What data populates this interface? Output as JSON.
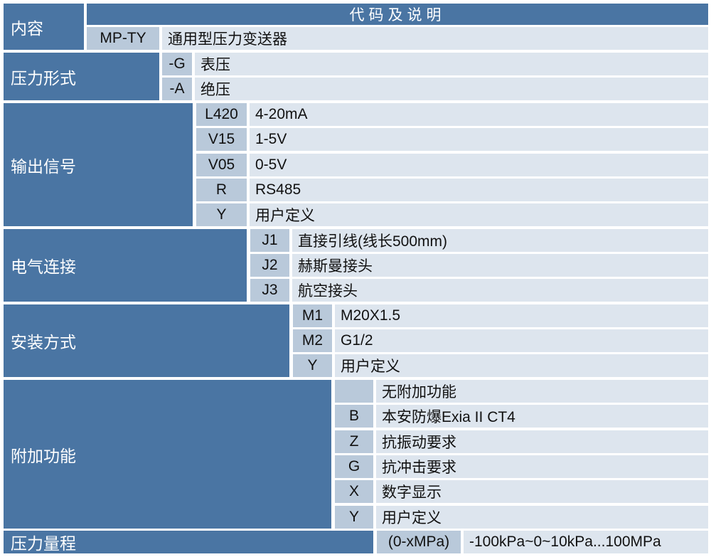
{
  "header": {
    "content_label": "内容",
    "code_desc_label": "代码及说明"
  },
  "model": {
    "code": "MP-TY",
    "desc": "通用型压力变送器"
  },
  "sections": [
    {
      "label": "压力形式",
      "rows": [
        {
          "code": "-G",
          "desc": "表压"
        },
        {
          "code": "-A",
          "desc": "绝压"
        }
      ]
    },
    {
      "label": "输出信号",
      "rows": [
        {
          "code": "L420",
          "desc": "4-20mA"
        },
        {
          "code": "V15",
          "desc": "1-5V"
        },
        {
          "code": "V05",
          "desc": "0-5V"
        },
        {
          "code": "R",
          "desc": "RS485"
        },
        {
          "code": "Y",
          "desc": "用户定义"
        }
      ]
    },
    {
      "label": "电气连接",
      "rows": [
        {
          "code": "J1",
          "desc": "直接引线(线长500mm)"
        },
        {
          "code": "J2",
          "desc": "赫斯曼接头"
        },
        {
          "code": "J3",
          "desc": "航空接头"
        }
      ]
    },
    {
      "label": "安装方式",
      "rows": [
        {
          "code": "M1",
          "desc": "M20X1.5"
        },
        {
          "code": "M2",
          "desc": "G1/2"
        },
        {
          "code": "Y",
          "desc": "用户定义"
        }
      ]
    },
    {
      "label": "附加功能",
      "rows": [
        {
          "code": "",
          "desc": "无附加功能"
        },
        {
          "code": "B",
          "desc": "本安防爆Exia II CT4"
        },
        {
          "code": "Z",
          "desc": "抗振动要求"
        },
        {
          "code": "G",
          "desc": "抗冲击要求"
        },
        {
          "code": "X",
          "desc": "数字显示"
        },
        {
          "code": "Y",
          "desc": "用户定义"
        }
      ]
    },
    {
      "label": "压力量程",
      "rows": [
        {
          "code": "(0-xMPa)",
          "desc": "-100kPa~0~10kPa...100MPa"
        }
      ]
    }
  ],
  "colors": {
    "header_blue": "#4a75a3",
    "code_cell": "#b9c9da",
    "desc_cell": "#dde5ee"
  }
}
